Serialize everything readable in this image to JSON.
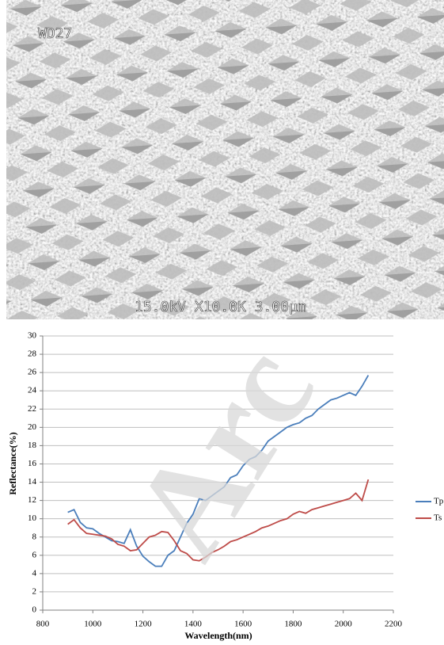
{
  "image": {
    "top_label": "WD27",
    "bottom_label": "15.0kV X10.0K 3.00μm"
  },
  "watermark": "Arc",
  "chart_data": {
    "type": "line",
    "x_label": "Wavelength(nm)",
    "y_label": "Reflectance(%)",
    "x": [
      900,
      925,
      950,
      975,
      1000,
      1025,
      1050,
      1075,
      1100,
      1125,
      1150,
      1175,
      1200,
      1225,
      1250,
      1275,
      1300,
      1325,
      1350,
      1375,
      1400,
      1425,
      1450,
      1475,
      1500,
      1525,
      1550,
      1575,
      1600,
      1625,
      1650,
      1675,
      1700,
      1725,
      1750,
      1775,
      1800,
      1825,
      1850,
      1875,
      1900,
      1925,
      1950,
      1975,
      2000,
      2025,
      2050,
      2075,
      2100
    ],
    "series": [
      {
        "name": "Tp",
        "color": "#4a7ebb",
        "values": [
          10.7,
          11.0,
          9.6,
          9.0,
          8.9,
          8.4,
          8.0,
          7.6,
          7.5,
          7.3,
          8.8,
          7.0,
          5.9,
          5.3,
          4.8,
          4.8,
          6.0,
          6.5,
          8.0,
          9.5,
          10.5,
          12.2,
          12.0,
          12.5,
          13.0,
          13.5,
          14.5,
          14.8,
          15.8,
          16.5,
          16.8,
          17.5,
          18.5,
          19.0,
          19.5,
          20.0,
          20.3,
          20.5,
          21.0,
          21.3,
          22.0,
          22.5,
          23.0,
          23.2,
          23.5,
          23.8,
          23.5,
          24.5,
          25.7
        ]
      },
      {
        "name": "Ts",
        "color": "#be4b48",
        "values": [
          9.4,
          9.9,
          9.0,
          8.4,
          8.3,
          8.2,
          8.1,
          7.8,
          7.2,
          7.0,
          6.5,
          6.6,
          7.3,
          8.0,
          8.2,
          8.6,
          8.5,
          7.6,
          6.5,
          6.2,
          5.5,
          5.4,
          5.8,
          6.3,
          6.6,
          7.0,
          7.5,
          7.7,
          8.0,
          8.3,
          8.6,
          9.0,
          9.2,
          9.5,
          9.8,
          10.0,
          10.5,
          10.8,
          10.6,
          11.0,
          11.2,
          11.4,
          11.6,
          11.8,
          12.0,
          12.2,
          12.8,
          12.0,
          14.3
        ]
      }
    ],
    "xlim": [
      800,
      2200
    ],
    "xticks": [
      800,
      1000,
      1200,
      1400,
      1600,
      1800,
      2000,
      2200
    ],
    "ylim": [
      0,
      30
    ],
    "yticks": [
      0,
      2,
      4,
      6,
      8,
      10,
      12,
      14,
      16,
      18,
      20,
      22,
      24,
      26,
      28,
      30
    ],
    "grid": true,
    "legend": "right"
  }
}
